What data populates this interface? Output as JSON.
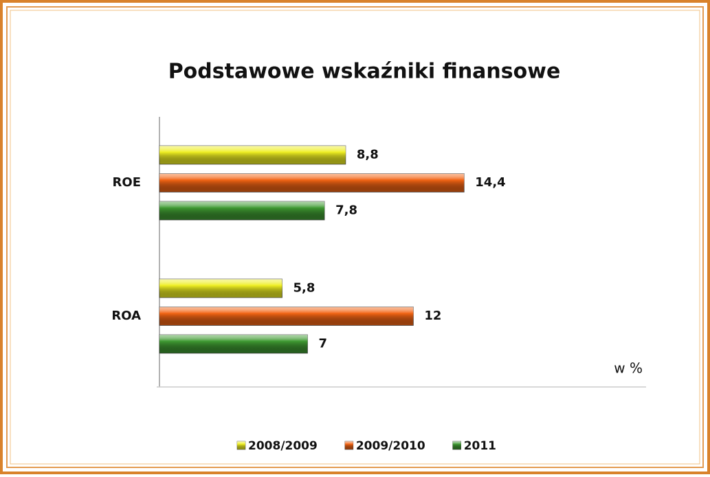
{
  "chart_data": {
    "type": "bar",
    "orientation": "horizontal",
    "title": "Podstawowe wskaźniki finansowe",
    "annotation": "w %",
    "categories": [
      "ROE",
      "ROA"
    ],
    "series": [
      {
        "name": "2008/2009",
        "color": "#eeee22",
        "values": [
          8.8,
          5.8
        ],
        "value_labels": [
          "8,8",
          "5,8"
        ]
      },
      {
        "name": "2009/2010",
        "color": "#f26414",
        "values": [
          14.4,
          12
        ],
        "value_labels": [
          "14,4",
          "12"
        ]
      },
      {
        "name": "2011",
        "color": "#3f9a32",
        "values": [
          7.8,
          7
        ],
        "value_labels": [
          "7,8",
          "7"
        ]
      }
    ],
    "xlim": [
      0,
      23
    ],
    "legend": "bottom"
  }
}
